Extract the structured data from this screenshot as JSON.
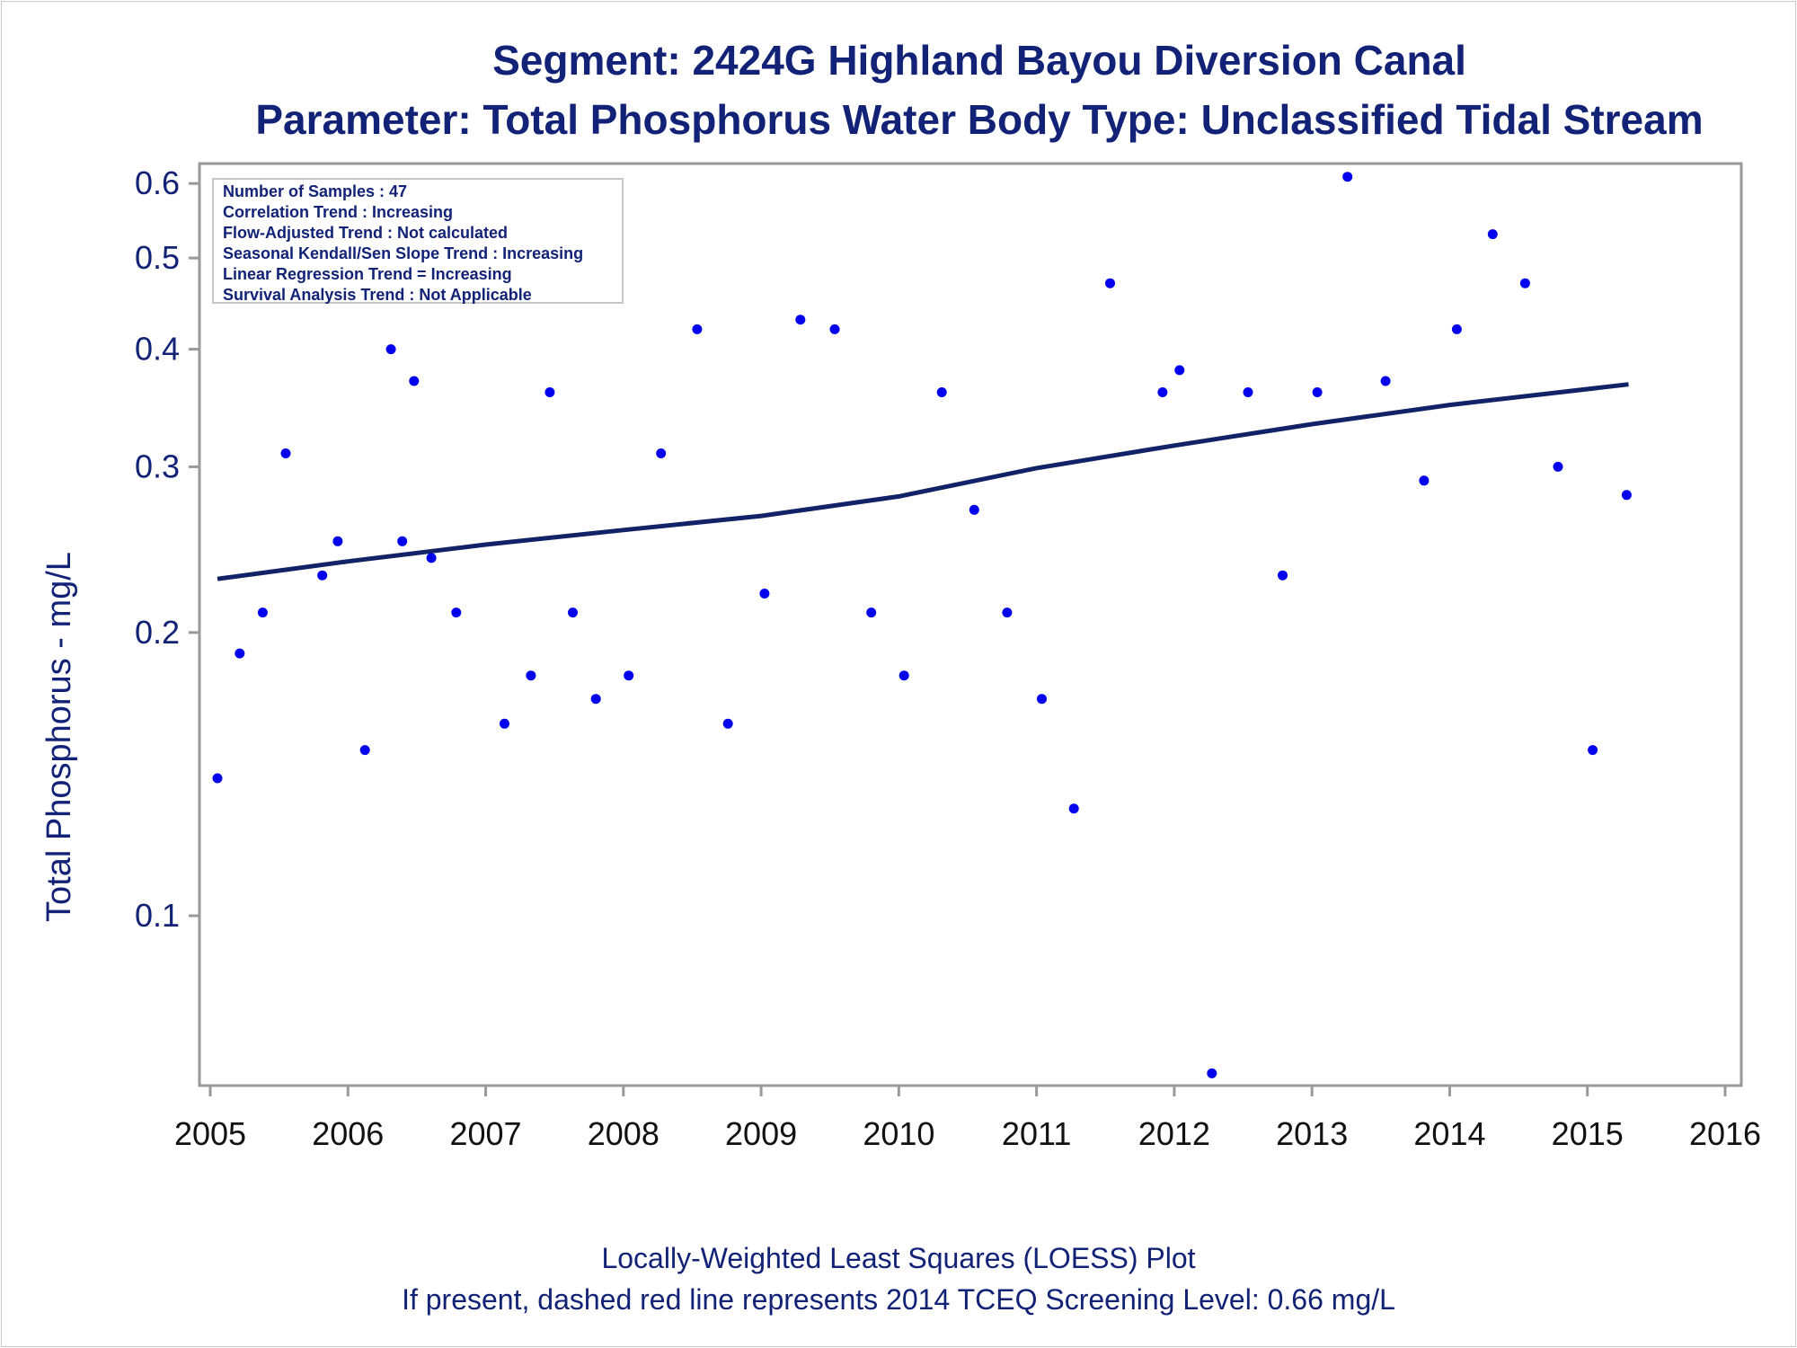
{
  "chart_data": {
    "type": "scatter",
    "title": "Segment: 2424G  Highland Bayou Diversion Canal",
    "subtitle": "Parameter: Total Phosphorus   Water Body Type: Unclassified Tidal Stream",
    "xlabel": "",
    "ylabel": "Total Phosphorus - mg/L",
    "y_scale": "log",
    "xlim": [
      2005,
      2016
    ],
    "ylim": [
      0.066,
      0.63
    ],
    "x_ticks": [
      "2005",
      "2006",
      "2007",
      "2008",
      "2009",
      "2010",
      "2011",
      "2012",
      "2013",
      "2014",
      "2015",
      "2016"
    ],
    "y_ticks": [
      "0.1",
      "0.2",
      "0.3",
      "0.4",
      "0.5",
      "0.6"
    ],
    "grid": false,
    "colors": {
      "points": "#0000ee",
      "trend": "#112266",
      "text": "#112277",
      "frame": "#999999"
    },
    "stats": [
      "Number of Samples : 47",
      "Correlation Trend : Increasing",
      "Flow-Adjusted Trend : Not calculated",
      "Seasonal Kendall/Sen Slope Trend : Increasing",
      "Linear Regression Trend = Increasing",
      "Survival Analysis Trend : Not Applicable"
    ],
    "footnotes": [
      "Locally-Weighted Least Squares (LOESS) Plot",
      "If present, dashed red line represents 2014 TCEQ Screening Level: 0.66 mg/L"
    ],
    "series": [
      {
        "kind": "points",
        "x": [
          "2005-01-20",
          "2005-03-20",
          "2005-05-20",
          "2005-07-20",
          "2005-10-25",
          "2005-12-05",
          "2006-02-15",
          "2006-04-25",
          "2006-05-25",
          "2006-06-25",
          "2006-08-10",
          "2006-10-15",
          "2007-02-20",
          "2007-05-01",
          "2007-06-20",
          "2007-08-20",
          "2007-10-20",
          "2008-01-15",
          "2008-04-10",
          "2008-07-15",
          "2008-10-05",
          "2009-01-10",
          "2009-04-15",
          "2009-07-15",
          "2009-10-20",
          "2010-01-15",
          "2010-04-25",
          "2010-07-20",
          "2010-10-15",
          "2011-01-15",
          "2011-04-10",
          "2011-07-15",
          "2011-12-01",
          "2012-01-15",
          "2012-04-10",
          "2012-07-15",
          "2012-10-15",
          "2013-01-15",
          "2013-04-05",
          "2013-07-15",
          "2013-10-25",
          "2014-01-20",
          "2014-04-25",
          "2014-07-20",
          "2014-10-15",
          "2015-01-15",
          "2015-04-15"
        ],
        "y": [
          0.14,
          0.19,
          0.21,
          0.31,
          0.23,
          0.25,
          0.15,
          0.4,
          0.25,
          0.37,
          0.24,
          0.21,
          0.16,
          0.18,
          0.36,
          0.21,
          0.17,
          0.18,
          0.31,
          0.42,
          0.16,
          0.22,
          0.43,
          0.42,
          0.21,
          0.18,
          0.36,
          0.27,
          0.21,
          0.17,
          0.13,
          0.47,
          0.36,
          0.38,
          0.068,
          0.36,
          0.23,
          0.36,
          0.61,
          0.37,
          0.29,
          0.42,
          0.53,
          0.47,
          0.3,
          0.15,
          0.28
        ]
      },
      {
        "kind": "loess",
        "x": [
          "2005-01-20",
          "2006-01-01",
          "2007-01-01",
          "2008-01-01",
          "2009-01-01",
          "2010-01-01",
          "2011-01-01",
          "2012-01-01",
          "2013-01-01",
          "2014-01-01",
          "2015-04-20"
        ],
        "y": [
          0.228,
          0.238,
          0.248,
          0.257,
          0.266,
          0.279,
          0.299,
          0.316,
          0.333,
          0.349,
          0.367
        ]
      }
    ]
  }
}
